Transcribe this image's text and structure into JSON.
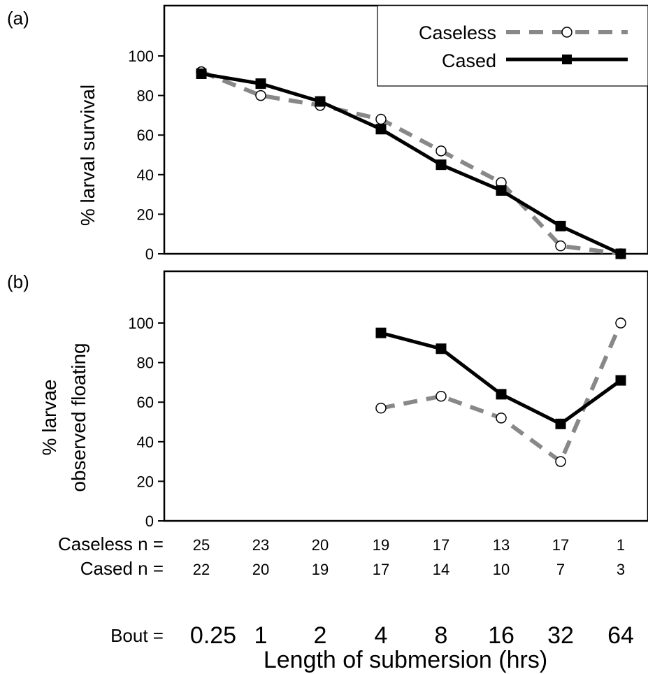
{
  "colors": {
    "caseless": "#888888",
    "cased": "#000000",
    "marker_fill": "#ffffff"
  },
  "chart_data": [
    {
      "panel": "(a)",
      "type": "line",
      "ylabel": "% larval survival",
      "ylim": [
        0,
        120
      ],
      "yticks": [
        "0",
        "20",
        "40",
        "60",
        "80",
        "100"
      ],
      "categories": [
        "0.25",
        "1",
        "2",
        "4",
        "8",
        "16",
        "32",
        "64"
      ],
      "legend": {
        "placement": "top-right",
        "entries": [
          "Caseless",
          "Cased"
        ]
      },
      "series": [
        {
          "name": "Caseless",
          "style": "dashed",
          "marker": "open-circle",
          "values": [
            92,
            80,
            75,
            68,
            52,
            36,
            4,
            0
          ]
        },
        {
          "name": "Cased",
          "style": "solid",
          "marker": "filled-square",
          "values": [
            91,
            86,
            77,
            63,
            45,
            32,
            14,
            0
          ]
        }
      ]
    },
    {
      "panel": "(b)",
      "type": "line",
      "ylabel_lines": [
        "% larvae",
        "observed floating"
      ],
      "ylim": [
        0,
        120
      ],
      "yticks": [
        "0",
        "20",
        "40",
        "60",
        "80",
        "100"
      ],
      "categories": [
        "0.25",
        "1",
        "2",
        "4",
        "8",
        "16",
        "32",
        "64"
      ],
      "series": [
        {
          "name": "Caseless",
          "style": "dashed",
          "marker": "open-circle",
          "values": [
            null,
            null,
            null,
            57,
            63,
            52,
            30,
            100
          ]
        },
        {
          "name": "Cased",
          "style": "solid",
          "marker": "filled-square",
          "values": [
            null,
            null,
            null,
            95,
            87,
            64,
            49,
            71
          ]
        }
      ]
    }
  ],
  "table": {
    "rows": [
      {
        "label": "Caseless n =",
        "values": [
          "25",
          "23",
          "20",
          "19",
          "17",
          "13",
          "17",
          "1"
        ]
      },
      {
        "label": "Cased n =",
        "values": [
          "22",
          "20",
          "19",
          "17",
          "14",
          "10",
          "7",
          "3"
        ]
      }
    ],
    "bout_label": "Bout =",
    "bout_values": [
      "0.25",
      "1",
      "2",
      "4",
      "8",
      "16",
      "32",
      "64"
    ]
  },
  "xlabel": "Length of submersion (hrs)"
}
